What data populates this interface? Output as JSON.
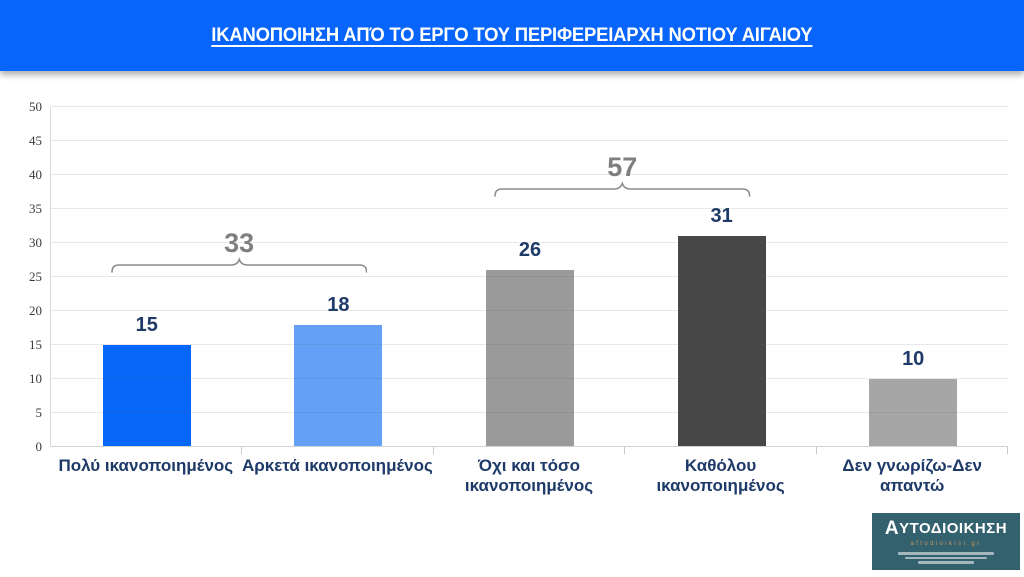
{
  "banner": {
    "title": "ΙΚΑΝΟΠΟΙΗΣΗ ΑΠΌ ΤΟ ΕΡΓΟ ΤΟΥ ΠΕΡΙΦΕΡΕΙΑΡΧΗ ΝΟΤΙΟΥ ΑΙΓΑΙΟΥ",
    "bg_color": "#0765FB",
    "text_color": "#FFFFFF"
  },
  "chart_data": {
    "type": "bar",
    "title": "ΙΚΑΝΟΠΟΙΗΣΗ ΑΠΌ ΤΟ ΕΡΓΟ ΤΟΥ ΠΕΡΙΦΕΡΕΙΑΡΧΗ ΝΟΤΙΟΥ ΑΙΓΑΙΟΥ",
    "categories": [
      "Πολύ ικανοποιημένος",
      "Αρκετά ικανοποιημένος",
      "Όχι και τόσο\nικανοποιημένος",
      "Καθόλου\nικανοποιημένος",
      "Δεν γνωρίζω-Δεν\nαπαντώ"
    ],
    "values": [
      15,
      18,
      26,
      31,
      10
    ],
    "bar_colors": [
      "#0666F8",
      "#64A0F6",
      "#9A9A9A",
      "#474747",
      "#A6A6A6"
    ],
    "ylim": [
      0,
      50
    ],
    "ytick_step": 5,
    "grid": true,
    "legend": "none",
    "value_label_color": "#1E3A68",
    "category_label_color": "#1E3A68",
    "axis_tick_color": "#3A3A3A",
    "annotations": [
      {
        "label": "33",
        "from": 0,
        "to": 1,
        "y": 25.6
      },
      {
        "label": "57",
        "from": 2,
        "to": 3,
        "y": 36.8
      }
    ],
    "annotation_color": "#7F7F7F",
    "bracket_stroke": "#8C8C8C"
  },
  "logo": {
    "initial": "Α",
    "rest": "ΥΤΟΔΙΟΙΚΗΣΗ",
    "site": "aftodioikisi.gr",
    "bg_color": "#33616E",
    "accent_color": "#C9975A"
  }
}
